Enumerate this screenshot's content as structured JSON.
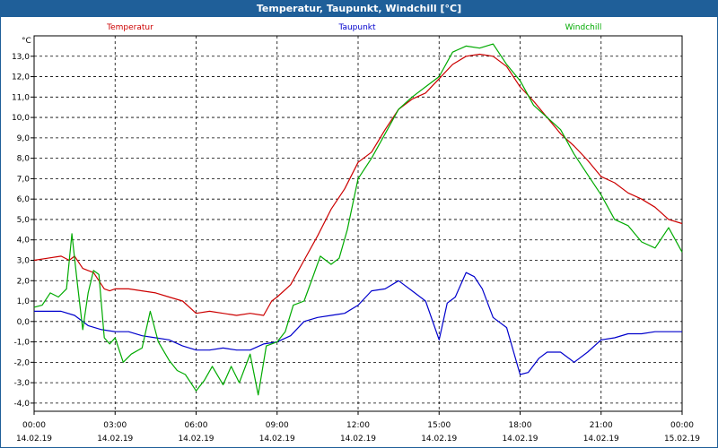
{
  "chart_data": {
    "type": "line",
    "title": "Temperatur, Taupunkt, Windchill [°C]",
    "ylabel": "°C",
    "xlabel": "",
    "ylim": [
      -4.4,
      14.0
    ],
    "xlim": [
      0,
      24
    ],
    "grid": true,
    "legend_position": "top",
    "yticks": [
      -4.0,
      -3.0,
      -2.0,
      -1.0,
      0.0,
      1.0,
      2.0,
      3.0,
      4.0,
      5.0,
      6.0,
      7.0,
      8.0,
      9.0,
      10.0,
      11.0,
      12.0,
      13.0
    ],
    "ytick_labels": [
      "-4,0",
      "-3,0",
      "-2,0",
      "-1,0",
      "0,0",
      "1,0",
      "2,0",
      "3,0",
      "4,0",
      "5,0",
      "6,0",
      "7,0",
      "8,0",
      "9,0",
      "10,0",
      "11,0",
      "12,0",
      "13,0"
    ],
    "xticks": [
      0,
      3,
      6,
      9,
      12,
      15,
      18,
      21,
      24
    ],
    "xtick_times": [
      "00:00",
      "03:00",
      "06:00",
      "09:00",
      "12:00",
      "15:00",
      "18:00",
      "21:00",
      "00:00"
    ],
    "xtick_dates": [
      "14.02.19",
      "14.02.19",
      "14.02.19",
      "14.02.19",
      "14.02.19",
      "14.02.19",
      "14.02.19",
      "14.02.19",
      "15.02.19"
    ],
    "series": [
      {
        "name": "Temperatur",
        "color": "#cc0000",
        "x": [
          0,
          0.5,
          1,
          1.3,
          1.5,
          1.8,
          2,
          2.2,
          2.4,
          2.6,
          2.8,
          3,
          3.5,
          4,
          4.5,
          5,
          5.5,
          6,
          6.5,
          7,
          7.5,
          8,
          8.5,
          8.8,
          9,
          9.5,
          10,
          10.5,
          11,
          11.5,
          12,
          12.5,
          13,
          13.5,
          14,
          14.5,
          15,
          15.5,
          16,
          16.5,
          17,
          17.5,
          18,
          18.5,
          19,
          19.5,
          20,
          20.5,
          21,
          21.5,
          22,
          22.5,
          23,
          23.5,
          24
        ],
        "values": [
          3.0,
          3.1,
          3.2,
          3.0,
          3.2,
          2.6,
          2.5,
          2.4,
          2.0,
          1.6,
          1.5,
          1.6,
          1.6,
          1.5,
          1.4,
          1.2,
          1.0,
          0.4,
          0.5,
          0.4,
          0.3,
          0.4,
          0.3,
          1.0,
          1.2,
          1.8,
          3.0,
          4.2,
          5.5,
          6.5,
          7.8,
          8.3,
          9.4,
          10.4,
          10.9,
          11.2,
          11.9,
          12.6,
          13.0,
          13.1,
          13.0,
          12.5,
          11.5,
          10.8,
          10.0,
          9.2,
          8.6,
          7.9,
          7.1,
          6.8,
          6.3,
          6.0,
          5.6,
          5.0,
          4.8
        ]
      },
      {
        "name": "Taupunkt",
        "color": "#0000cc",
        "x": [
          0,
          0.5,
          1,
          1.5,
          2,
          2.5,
          3,
          3.5,
          4,
          4.5,
          5,
          5.5,
          6,
          6.5,
          7,
          7.5,
          8,
          8.5,
          9,
          9.5,
          10,
          10.5,
          11,
          11.5,
          12,
          12.5,
          13,
          13.5,
          14,
          14.5,
          15,
          15.3,
          15.6,
          16,
          16.3,
          16.6,
          17,
          17.5,
          18,
          18.3,
          18.7,
          19,
          19.5,
          20,
          20.5,
          21,
          21.5,
          22,
          22.5,
          23,
          23.5,
          24
        ],
        "values": [
          0.5,
          0.5,
          0.5,
          0.3,
          -0.2,
          -0.4,
          -0.5,
          -0.5,
          -0.7,
          -0.8,
          -0.9,
          -1.2,
          -1.4,
          -1.4,
          -1.3,
          -1.4,
          -1.4,
          -1.1,
          -1.0,
          -0.7,
          0.0,
          0.2,
          0.3,
          0.4,
          0.8,
          1.5,
          1.6,
          2.0,
          1.5,
          1.0,
          -0.9,
          0.9,
          1.2,
          2.4,
          2.2,
          1.6,
          0.2,
          -0.3,
          -2.6,
          -2.5,
          -1.8,
          -1.5,
          -1.5,
          -2.0,
          -1.5,
          -0.9,
          -0.8,
          -0.6,
          -0.6,
          -0.5,
          -0.5,
          -0.5
        ]
      },
      {
        "name": "Windchill",
        "color": "#00aa00",
        "x": [
          0,
          0.3,
          0.6,
          0.9,
          1.2,
          1.4,
          1.6,
          1.8,
          2.0,
          2.2,
          2.4,
          2.6,
          2.8,
          3.0,
          3.3,
          3.6,
          4.0,
          4.3,
          4.6,
          5.0,
          5.3,
          5.6,
          6.0,
          6.3,
          6.6,
          7.0,
          7.3,
          7.6,
          8.0,
          8.3,
          8.6,
          9.0,
          9.3,
          9.6,
          10.0,
          10.3,
          10.6,
          11.0,
          11.3,
          11.6,
          12.0,
          12.5,
          13,
          13.5,
          14,
          14.5,
          15,
          15.5,
          16,
          16.5,
          17,
          17.5,
          18,
          18.5,
          19,
          19.5,
          20,
          20.5,
          21,
          21.5,
          22,
          22.5,
          23,
          23.5,
          24
        ],
        "values": [
          0.7,
          0.8,
          1.4,
          1.2,
          1.6,
          4.3,
          1.9,
          -0.4,
          1.4,
          2.5,
          2.3,
          -0.8,
          -1.1,
          -0.8,
          -2.0,
          -1.6,
          -1.3,
          0.5,
          -1.0,
          -1.9,
          -2.4,
          -2.6,
          -3.4,
          -2.9,
          -2.2,
          -3.1,
          -2.2,
          -3.0,
          -1.6,
          -3.6,
          -1.2,
          -1.0,
          -0.5,
          0.8,
          1.0,
          2.1,
          3.2,
          2.8,
          3.1,
          4.5,
          7.0,
          8.0,
          9.2,
          10.4,
          11.0,
          11.5,
          12.0,
          13.2,
          13.5,
          13.4,
          13.6,
          12.6,
          11.8,
          10.6,
          10.0,
          9.4,
          8.2,
          7.2,
          6.2,
          5.0,
          4.7,
          3.9,
          3.6,
          4.6,
          3.4
        ]
      }
    ]
  }
}
